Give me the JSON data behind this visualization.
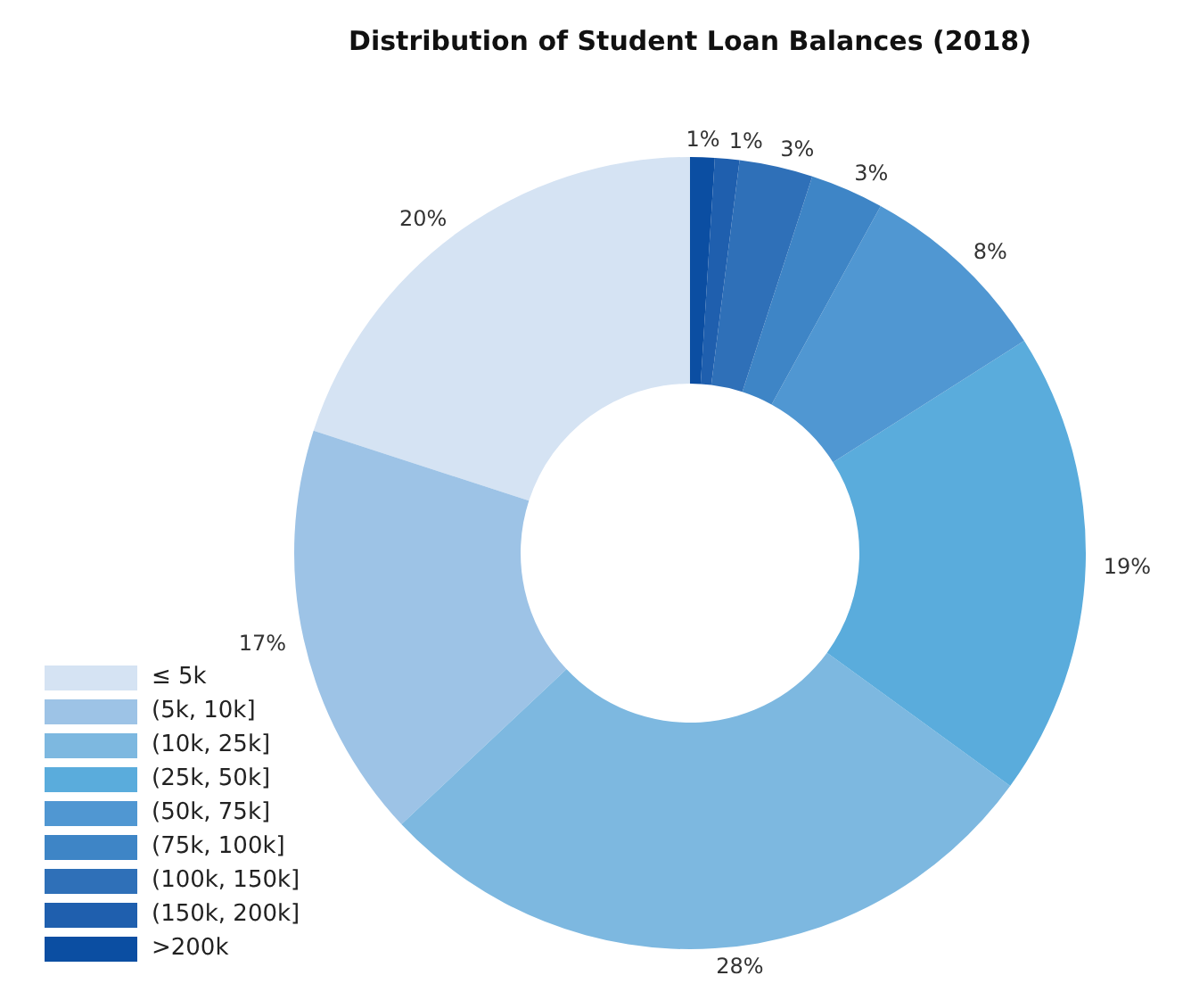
{
  "chart_data": {
    "type": "donut",
    "title": "Distribution of Student Loan Balances (2018)",
    "categories": [
      "≤ 5k",
      "(5k, 10k]",
      "(10k, 25k]",
      "(25k, 50k]",
      "(50k, 75k]",
      "(75k, 100k]",
      "(100k, 150k]",
      "(150k, 200k]",
      ">200k"
    ],
    "values": [
      20,
      17,
      28,
      19,
      8,
      3,
      3,
      1,
      1
    ],
    "value_labels": [
      "20%",
      "17%",
      "28%",
      "19%",
      "8%",
      "3%",
      "3%",
      "1%",
      "1%"
    ],
    "colors": [
      "#d5e3f3",
      "#9dc3e6",
      "#7db8e0",
      "#5aacdc",
      "#5097d2",
      "#3e85c6",
      "#2f70b8",
      "#1f5fae",
      "#0b4ea2"
    ],
    "legend": "bottom left"
  }
}
